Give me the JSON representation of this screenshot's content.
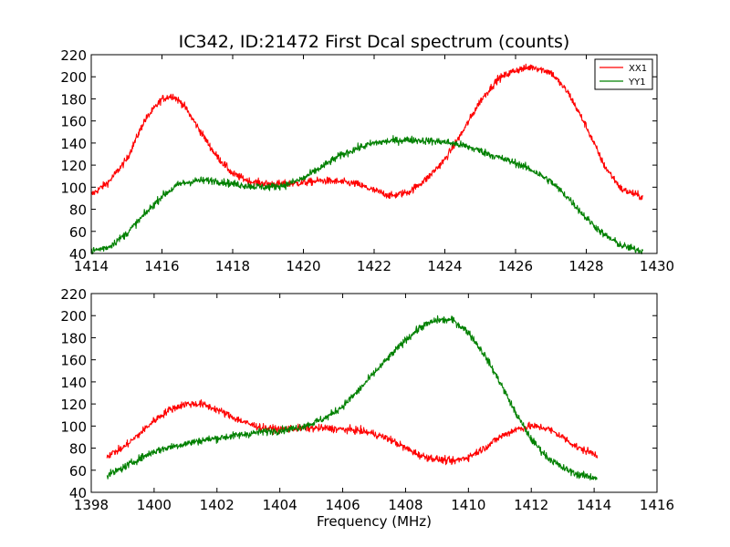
{
  "chart_data": [
    {
      "type": "line",
      "title": "IC342, ID:21472 First Dcal spectrum (counts)",
      "xlabel": "",
      "ylabel": "",
      "xlim": [
        1414,
        1430
      ],
      "ylim": [
        40,
        220
      ],
      "xticks": [
        1414,
        1416,
        1418,
        1420,
        1422,
        1424,
        1426,
        1428,
        1430
      ],
      "yticks": [
        40,
        60,
        80,
        100,
        120,
        140,
        160,
        180,
        200,
        220
      ],
      "grid": false,
      "legend": "top-right",
      "series": [
        {
          "name": "XX1",
          "color": "#ff0000",
          "x": [
            1414.0,
            1414.5,
            1415.0,
            1415.5,
            1416.0,
            1416.3,
            1416.6,
            1417.0,
            1417.5,
            1418.0,
            1418.5,
            1419.0,
            1419.5,
            1420.0,
            1420.5,
            1421.0,
            1421.5,
            1422.0,
            1422.5,
            1423.0,
            1423.5,
            1424.0,
            1424.5,
            1425.0,
            1425.5,
            1426.0,
            1426.5,
            1427.0,
            1427.5,
            1428.0,
            1428.5,
            1429.0,
            1429.6
          ],
          "values": [
            93,
            105,
            125,
            160,
            180,
            183,
            175,
            155,
            130,
            112,
            105,
            103,
            103,
            104,
            106,
            105,
            103,
            97,
            92,
            96,
            108,
            125,
            150,
            178,
            198,
            206,
            209,
            204,
            185,
            155,
            120,
            98,
            91
          ]
        },
        {
          "name": "YY1",
          "color": "#008000",
          "x": [
            1414.0,
            1414.5,
            1415.0,
            1415.5,
            1416.0,
            1416.5,
            1417.0,
            1417.5,
            1418.0,
            1418.5,
            1419.0,
            1419.5,
            1420.0,
            1420.5,
            1421.0,
            1421.5,
            1422.0,
            1422.5,
            1423.0,
            1423.5,
            1424.0,
            1424.5,
            1425.0,
            1425.5,
            1426.0,
            1426.5,
            1427.0,
            1427.5,
            1428.0,
            1428.5,
            1429.0,
            1429.6
          ],
          "values": [
            42,
            46,
            58,
            75,
            92,
            103,
            106,
            106,
            103,
            101,
            100,
            102,
            108,
            118,
            128,
            135,
            140,
            142,
            143,
            142,
            141,
            138,
            133,
            127,
            122,
            115,
            105,
            90,
            72,
            57,
            47,
            42
          ]
        }
      ]
    },
    {
      "type": "line",
      "title": "",
      "xlabel": "Frequency (MHz)",
      "ylabel": "",
      "xlim": [
        1398,
        1416
      ],
      "ylim": [
        40,
        220
      ],
      "xticks": [
        1398,
        1400,
        1402,
        1404,
        1406,
        1408,
        1410,
        1412,
        1414,
        1416
      ],
      "yticks": [
        40,
        60,
        80,
        100,
        120,
        140,
        160,
        180,
        200,
        220
      ],
      "grid": false,
      "legend": "none",
      "series": [
        {
          "color": "#ff0000",
          "x": [
            1398.5,
            1399.0,
            1399.5,
            1400.0,
            1400.5,
            1401.0,
            1401.5,
            1402.0,
            1402.5,
            1403.0,
            1403.5,
            1404.0,
            1404.5,
            1405.0,
            1405.5,
            1406.0,
            1406.5,
            1407.0,
            1407.5,
            1408.0,
            1408.5,
            1409.0,
            1409.5,
            1410.0,
            1410.5,
            1411.0,
            1411.5,
            1412.0,
            1412.5,
            1413.0,
            1413.5,
            1414.1
          ],
          "values": [
            73,
            80,
            92,
            105,
            115,
            120,
            120,
            115,
            108,
            102,
            98,
            97,
            98,
            98,
            98,
            97,
            96,
            93,
            88,
            80,
            73,
            70,
            68,
            72,
            80,
            90,
            97,
            100,
            98,
            90,
            80,
            74
          ]
        },
        {
          "color": "#008000",
          "x": [
            1398.5,
            1399.0,
            1399.5,
            1400.0,
            1400.5,
            1401.0,
            1401.5,
            1402.0,
            1402.5,
            1403.0,
            1403.5,
            1404.0,
            1404.5,
            1405.0,
            1405.5,
            1406.0,
            1406.5,
            1407.0,
            1407.5,
            1408.0,
            1408.5,
            1409.0,
            1409.5,
            1410.0,
            1410.5,
            1411.0,
            1411.5,
            1412.0,
            1412.5,
            1413.0,
            1413.5,
            1414.1
          ],
          "values": [
            55,
            62,
            70,
            77,
            81,
            84,
            87,
            89,
            91,
            93,
            95,
            96,
            98,
            102,
            108,
            118,
            132,
            148,
            163,
            178,
            190,
            196,
            196,
            185,
            165,
            140,
            112,
            88,
            72,
            62,
            56,
            53
          ]
        }
      ]
    }
  ]
}
